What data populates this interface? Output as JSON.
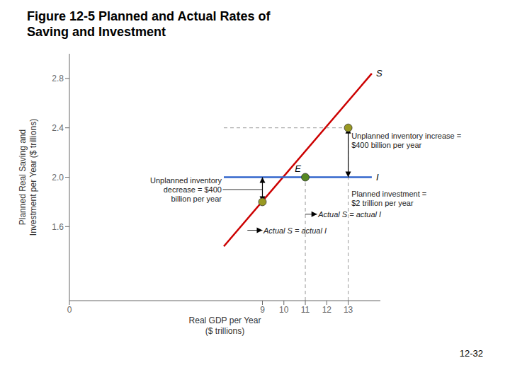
{
  "chart_data": {
    "type": "line",
    "title": "Figure 12-5  Planned and Actual Rates of\nSaving and Investment",
    "xlabel": "Real GDP per Year\n($ trillions)",
    "ylabel": "Planned Real Saving and\nInvestment per Year ($ trillions)",
    "xlim": [
      0,
      14.5
    ],
    "ylim": [
      1.0,
      3.0
    ],
    "xticks": [
      0,
      9,
      10,
      11,
      12,
      13
    ],
    "yticks": [
      1.6,
      {
        "value": 2,
        "label": "2.0"
      },
      2.4,
      2.8
    ],
    "series": [
      {
        "name": "S",
        "color": "#cc0000",
        "x": [
          7.2,
          14.1
        ],
        "values": [
          1.44,
          2.84
        ]
      },
      {
        "name": "I",
        "color": "#3366cc",
        "x": [
          7.2,
          14.1
        ],
        "values": [
          2.0,
          2.0
        ]
      },
      {
        "type": "scatter",
        "x": [
          9,
          11,
          13
        ],
        "values": [
          1.8,
          2.0,
          2.4
        ],
        "colors": [
          "#999922",
          "#558822",
          "#999922"
        ],
        "labels": [
          null,
          "E",
          null
        ]
      },
      {
        "line_style": "dashed",
        "color": "#999999",
        "x": [
          7.2,
          13
        ],
        "values": [
          2.4,
          2.4
        ]
      },
      {
        "line_style": "dashed",
        "color": "#999999",
        "x": [
          11,
          11
        ],
        "values": [
          1.0,
          2.0
        ]
      },
      {
        "line_style": "dashed",
        "color": "#999999",
        "x": [
          13,
          13
        ],
        "values": [
          1.0,
          2.4
        ]
      }
    ],
    "annotations": [
      "Unplanned inventory\ndecrease = $400\nbillion per year",
      "Actual S = actual I",
      "Unplanned inventory increase =\n$400 billion per year",
      "Planned investment =\n$2 trillion per year",
      "Actual S = actual I",
      "12-32"
    ]
  }
}
